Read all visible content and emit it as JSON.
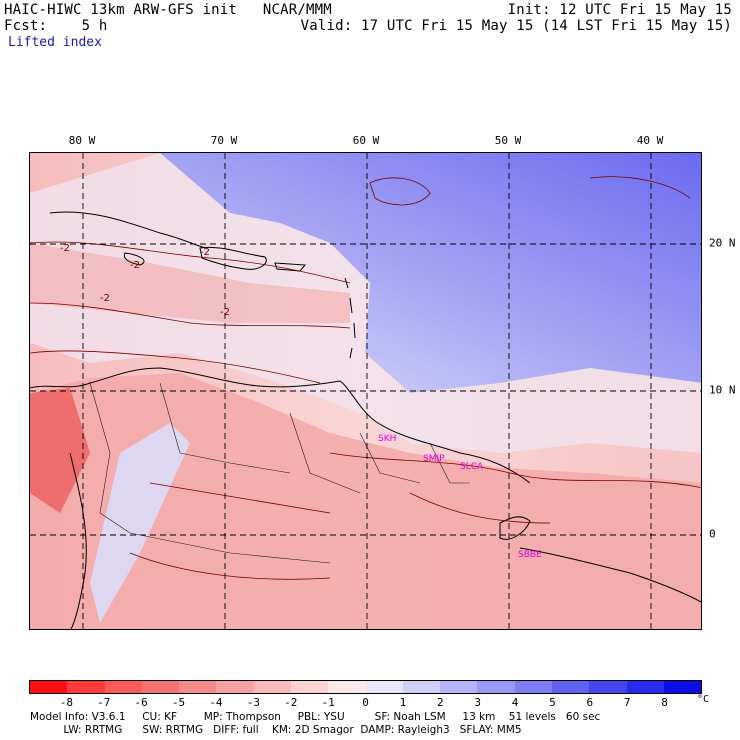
{
  "header": {
    "title": "HAIC-HIWC 13km ARW-GFS init   NCAR/MMM",
    "init": "Init: 12 UTC Fri 15 May 15",
    "fcst": "Fcst:    5 h",
    "valid": "Valid: 17 UTC Fri 15 May 15 (14 LST Fri 15 May 15)",
    "field": "Lifted index"
  },
  "map": {
    "lon_labels": [
      "80 W",
      "70 W",
      "60 W",
      "50 W",
      "40 W"
    ],
    "lat_labels": [
      "20 N",
      "10 N",
      "0"
    ],
    "contour_labels": [
      "-2",
      "-2",
      "-2",
      "-2",
      "-2"
    ],
    "cities": [
      "SKH",
      "SMJP",
      "SLCA",
      "SBBE"
    ]
  },
  "colorbar": {
    "ticks": [
      "-8",
      "-7",
      "-6",
      "-5",
      "-4",
      "-3",
      "-2",
      "-1",
      "0",
      "1",
      "2",
      "3",
      "4",
      "5",
      "6",
      "7",
      "8"
    ],
    "unit": "°C",
    "colors": [
      "#ff1010",
      "#ff3a3a",
      "#fa5a5a",
      "#f77272",
      "#f58a8a",
      "#f6a2a2",
      "#f8baba",
      "#f9d2d2",
      "#fbe8e8",
      "#e8e8fb",
      "#d0d0f8",
      "#b4b4f6",
      "#9a9af4",
      "#7e7ef2",
      "#6262f0",
      "#4646ee",
      "#2a2aec",
      "#0e0ee8"
    ]
  },
  "footer": {
    "line1": "Model Info: V3.6.1     CU: KF        MP: Thompson     PBL: YSU         SF: Noah LSM     13 km    51 levels   60 sec",
    "line2": "          LW: RRTMG      SW: RRTMG   DIFF: full    KM: 2D Smagor  DAMP: Rayleigh3   SFLAY: MM5"
  }
}
